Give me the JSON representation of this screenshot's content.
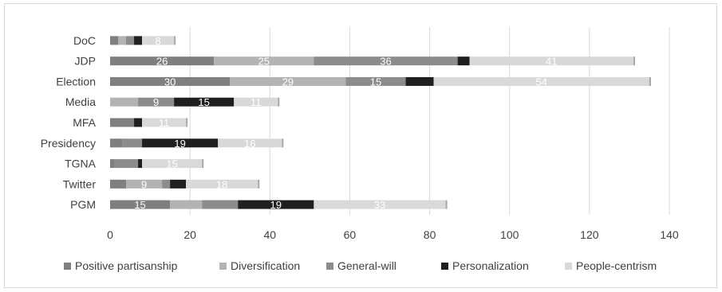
{
  "chart_data": {
    "type": "bar",
    "orientation": "horizontal",
    "stacked": true,
    "categories": [
      "DoC",
      "JDP",
      "Election",
      "Media",
      "MFA",
      "Presidency",
      "TGNA",
      "Twitter",
      "PGM"
    ],
    "series": [
      {
        "name": "Positive partisanship",
        "color": "#7f7f7f",
        "label_color": "#ffffff",
        "values": [
          2,
          26,
          30,
          0,
          6,
          3,
          1,
          4,
          15
        ]
      },
      {
        "name": "Diversification",
        "color": "#b3b3b3",
        "label_color": "#ffffff",
        "values": [
          2,
          25,
          29,
          7,
          0,
          0,
          0,
          9,
          8
        ]
      },
      {
        "name": "General-will",
        "color": "#8c8c8c",
        "label_color": "#ffffff",
        "values": [
          2,
          36,
          15,
          9,
          0,
          5,
          6,
          2,
          9
        ]
      },
      {
        "name": "Personalization",
        "color": "#1f1f1f",
        "label_color": "#ffffff",
        "values": [
          2,
          3,
          7,
          15,
          2,
          19,
          1,
          4,
          19
        ]
      },
      {
        "name": "People-centrism",
        "color": "#d9d9d9",
        "label_color": "#ffffff",
        "values": [
          8,
          41,
          54,
          11,
          11,
          16,
          15,
          18,
          33
        ]
      }
    ],
    "data_labels": [
      [
        null,
        null,
        null,
        null,
        "8"
      ],
      [
        "26",
        "25",
        "36",
        null,
        "41"
      ],
      [
        "30",
        "29",
        "15",
        null,
        "54"
      ],
      [
        null,
        null,
        "9",
        "15",
        "11"
      ],
      [
        null,
        null,
        null,
        null,
        "11"
      ],
      [
        null,
        null,
        null,
        "19",
        "16"
      ],
      [
        null,
        null,
        null,
        null,
        "15"
      ],
      [
        null,
        "9",
        null,
        null,
        "18"
      ],
      [
        "15",
        null,
        null,
        "19",
        "33"
      ]
    ],
    "xlim": [
      0,
      140
    ],
    "x_ticks": [
      "0",
      "20",
      "40",
      "60",
      "80",
      "100",
      "120",
      "140"
    ],
    "grid": true,
    "legend_position": "bottom",
    "title": "",
    "xlabel": "",
    "ylabel": ""
  }
}
